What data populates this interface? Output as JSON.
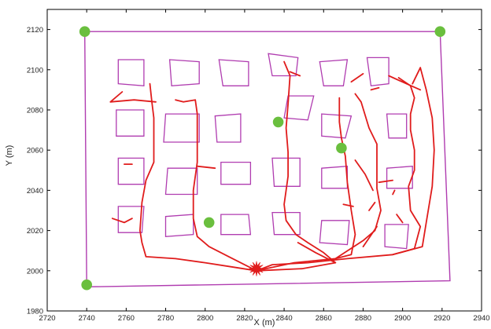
{
  "chart_data": {
    "type": "scatter",
    "title": "",
    "xlabel": "X (m)",
    "ylabel": "Y (m)",
    "xlim": [
      2720,
      2940
    ],
    "ylim": [
      1980,
      2130
    ],
    "xticks": [
      2720,
      2740,
      2760,
      2780,
      2800,
      2820,
      2840,
      2860,
      2880,
      2900,
      2920,
      2940
    ],
    "yticks": [
      1980,
      2000,
      2020,
      2040,
      2060,
      2080,
      2100,
      2120
    ],
    "grid": false,
    "colors": {
      "outline": "#b03cb0",
      "path": "#e01c1c",
      "marker": "#6abf3e"
    },
    "boundary": [
      [
        2739,
        2119
      ],
      [
        2919,
        2119
      ],
      [
        2924,
        1995
      ],
      [
        2740,
        1992
      ],
      [
        2739,
        2119
      ]
    ],
    "buildings": [
      [
        [
          2756,
          2105
        ],
        [
          2769,
          2105
        ],
        [
          2769,
          2092
        ],
        [
          2756,
          2093
        ]
      ],
      [
        [
          2782,
          2105
        ],
        [
          2797,
          2104
        ],
        [
          2797,
          2093
        ],
        [
          2783,
          2092
        ]
      ],
      [
        [
          2807,
          2105
        ],
        [
          2822,
          2104
        ],
        [
          2822,
          2092
        ],
        [
          2809,
          2092
        ]
      ],
      [
        [
          2832,
          2108
        ],
        [
          2847,
          2106
        ],
        [
          2846,
          2097
        ],
        [
          2834,
          2097
        ]
      ],
      [
        [
          2858,
          2104
        ],
        [
          2872,
          2105
        ],
        [
          2870,
          2092
        ],
        [
          2860,
          2092
        ]
      ],
      [
        [
          2882,
          2106
        ],
        [
          2893,
          2106
        ],
        [
          2893,
          2093
        ],
        [
          2884,
          2092
        ]
      ],
      [
        [
          2755,
          2080
        ],
        [
          2769,
          2080
        ],
        [
          2769,
          2067
        ],
        [
          2755,
          2067
        ]
      ],
      [
        [
          2780,
          2078
        ],
        [
          2797,
          2078
        ],
        [
          2797,
          2064
        ],
        [
          2779,
          2064
        ]
      ],
      [
        [
          2805,
          2077
        ],
        [
          2818,
          2078
        ],
        [
          2818,
          2064
        ],
        [
          2806,
          2064
        ]
      ],
      [
        [
          2842,
          2087
        ],
        [
          2855,
          2087
        ],
        [
          2852,
          2075
        ],
        [
          2840,
          2076
        ]
      ],
      [
        [
          2859,
          2078
        ],
        [
          2874,
          2077
        ],
        [
          2871,
          2066
        ],
        [
          2859,
          2067
        ]
      ],
      [
        [
          2892,
          2078
        ],
        [
          2902,
          2078
        ],
        [
          2902,
          2066
        ],
        [
          2893,
          2066
        ]
      ],
      [
        [
          2756,
          2056
        ],
        [
          2769,
          2056
        ],
        [
          2769,
          2043
        ],
        [
          2756,
          2043
        ]
      ],
      [
        [
          2781,
          2051
        ],
        [
          2796,
          2051
        ],
        [
          2796,
          2038
        ],
        [
          2780,
          2038
        ]
      ],
      [
        [
          2808,
          2054
        ],
        [
          2823,
          2054
        ],
        [
          2823,
          2043
        ],
        [
          2808,
          2043
        ]
      ],
      [
        [
          2834,
          2056
        ],
        [
          2848,
          2056
        ],
        [
          2848,
          2042
        ],
        [
          2835,
          2042
        ]
      ],
      [
        [
          2859,
          2051
        ],
        [
          2872,
          2052
        ],
        [
          2872,
          2041
        ],
        [
          2859,
          2041
        ]
      ],
      [
        [
          2892,
          2051
        ],
        [
          2905,
          2052
        ],
        [
          2905,
          2041
        ],
        [
          2892,
          2041
        ]
      ],
      [
        [
          2756,
          2032
        ],
        [
          2769,
          2032
        ],
        [
          2768,
          2019
        ],
        [
          2756,
          2019
        ]
      ],
      [
        [
          2780,
          2027
        ],
        [
          2794,
          2028
        ],
        [
          2794,
          2018
        ],
        [
          2780,
          2017
        ]
      ],
      [
        [
          2808,
          2028
        ],
        [
          2822,
          2028
        ],
        [
          2823,
          2018
        ],
        [
          2808,
          2018
        ]
      ],
      [
        [
          2834,
          2029
        ],
        [
          2848,
          2029
        ],
        [
          2848,
          2018
        ],
        [
          2835,
          2018
        ]
      ],
      [
        [
          2859,
          2025
        ],
        [
          2873,
          2025
        ],
        [
          2872,
          2013
        ],
        [
          2858,
          2014
        ]
      ],
      [
        [
          2891,
          2023
        ],
        [
          2903,
          2023
        ],
        [
          2902,
          2011
        ],
        [
          2891,
          2012
        ]
      ]
    ],
    "paths": [
      [
        [
          2826,
          2000
        ],
        [
          2813,
          2002
        ],
        [
          2800,
          2004
        ],
        [
          2785,
          2006
        ],
        [
          2770,
          2007
        ],
        [
          2768,
          2014
        ],
        [
          2767,
          2020
        ],
        [
          2768,
          2034
        ],
        [
          2770,
          2045
        ],
        [
          2774,
          2054
        ],
        [
          2774,
          2064
        ],
        [
          2774,
          2076
        ],
        [
          2773,
          2084
        ],
        [
          2772,
          2093
        ]
      ],
      [
        [
          2775,
          2084
        ],
        [
          2764,
          2085
        ],
        [
          2752,
          2084
        ],
        [
          2758,
          2089
        ]
      ],
      [
        [
          2763,
          2053
        ],
        [
          2759,
          2053
        ]
      ],
      [
        [
          2753,
          2026
        ],
        [
          2759,
          2024
        ],
        [
          2763,
          2026
        ]
      ],
      [
        [
          2826,
          2000
        ],
        [
          2812,
          2007
        ],
        [
          2802,
          2012
        ],
        [
          2796,
          2017
        ],
        [
          2794,
          2026
        ],
        [
          2794,
          2040
        ],
        [
          2796,
          2054
        ],
        [
          2796,
          2066
        ],
        [
          2796,
          2078
        ],
        [
          2795,
          2085
        ],
        [
          2789,
          2084
        ],
        [
          2785,
          2085
        ]
      ],
      [
        [
          2796,
          2052
        ],
        [
          2805,
          2051
        ]
      ],
      [
        [
          2826,
          2000
        ],
        [
          2834,
          2003
        ],
        [
          2852,
          2004
        ],
        [
          2872,
          2006
        ],
        [
          2895,
          2008
        ],
        [
          2906,
          2011
        ],
        [
          2909,
          2022
        ],
        [
          2904,
          2030
        ],
        [
          2903,
          2042
        ],
        [
          2906,
          2050
        ],
        [
          2906,
          2060
        ],
        [
          2904,
          2070
        ],
        [
          2904,
          2078
        ],
        [
          2906,
          2086
        ],
        [
          2904,
          2092
        ],
        [
          2898,
          2096
        ]
      ],
      [
        [
          2826,
          2000
        ],
        [
          2845,
          2004
        ],
        [
          2866,
          2006
        ],
        [
          2874,
          2008
        ],
        [
          2876,
          2018
        ],
        [
          2874,
          2030
        ],
        [
          2872,
          2044
        ],
        [
          2871,
          2057
        ],
        [
          2869,
          2066
        ],
        [
          2868,
          2074
        ],
        [
          2868,
          2086
        ]
      ],
      [
        [
          2826,
          2000
        ],
        [
          2849,
          2001
        ],
        [
          2866,
          2004
        ],
        [
          2860,
          2009
        ],
        [
          2852,
          2014
        ],
        [
          2846,
          2018
        ],
        [
          2841,
          2025
        ],
        [
          2840,
          2033
        ],
        [
          2842,
          2047
        ],
        [
          2842,
          2059
        ],
        [
          2841,
          2071
        ],
        [
          2842,
          2083
        ],
        [
          2843,
          2097
        ],
        [
          2840,
          2104
        ]
      ],
      [
        [
          2843,
          2099
        ],
        [
          2848,
          2097
        ]
      ],
      [
        [
          2866,
          2004
        ],
        [
          2856,
          2009
        ],
        [
          2847,
          2014
        ]
      ],
      [
        [
          2866,
          2006
        ],
        [
          2880,
          2015
        ],
        [
          2886,
          2020
        ],
        [
          2889,
          2030
        ],
        [
          2887,
          2041
        ],
        [
          2887,
          2053
        ],
        [
          2887,
          2063
        ],
        [
          2883,
          2071
        ],
        [
          2879,
          2084
        ],
        [
          2876,
          2088
        ]
      ],
      [
        [
          2880,
          2012
        ],
        [
          2887,
          2022
        ]
      ],
      [
        [
          2886,
          2034
        ],
        [
          2883,
          2030
        ]
      ],
      [
        [
          2876,
          2055
        ],
        [
          2881,
          2048
        ],
        [
          2885,
          2040
        ]
      ],
      [
        [
          2895,
          2008
        ],
        [
          2910,
          2012
        ],
        [
          2912,
          2024
        ],
        [
          2915,
          2042
        ],
        [
          2916,
          2060
        ],
        [
          2915,
          2076
        ],
        [
          2912,
          2090
        ],
        [
          2909,
          2101
        ]
      ],
      [
        [
          2909,
          2101
        ],
        [
          2905,
          2093
        ]
      ],
      [
        [
          2909,
          2090
        ],
        [
          2902,
          2093
        ],
        [
          2893,
          2097
        ]
      ],
      [
        [
          2875,
          2032
        ],
        [
          2870,
          2033
        ]
      ],
      [
        [
          2895,
          2038
        ],
        [
          2896,
          2040
        ]
      ],
      [
        [
          2888,
          2044
        ],
        [
          2895,
          2045
        ]
      ],
      [
        [
          2897,
          2028
        ],
        [
          2900,
          2024
        ]
      ],
      [
        [
          2884,
          2090
        ],
        [
          2888,
          2091
        ]
      ],
      [
        [
          2880,
          2098
        ],
        [
          2874,
          2094
        ]
      ]
    ],
    "markers": [
      [
        2739,
        2119
      ],
      [
        2919,
        2119
      ],
      [
        2740,
        1993
      ],
      [
        2837,
        2074
      ],
      [
        2869,
        2061
      ],
      [
        2802,
        2024
      ]
    ],
    "source": [
      2826,
      2001
    ]
  }
}
